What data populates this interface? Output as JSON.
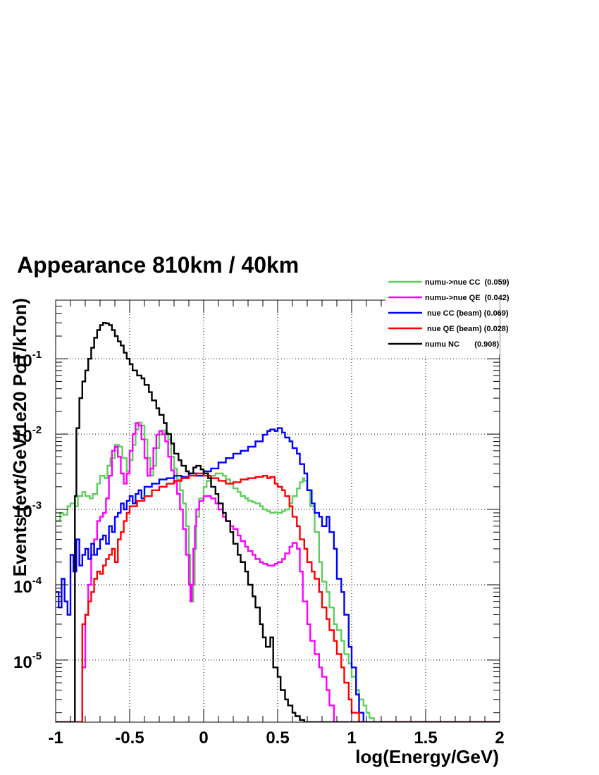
{
  "chart_data": {
    "type": "line",
    "title": "Appearance 810km / 40km",
    "xlabel": "log(Energy/GeV)",
    "ylabel": "Events (evt/GeV/1e20 PoT/kTon)",
    "xlim": [
      -1,
      2
    ],
    "ylim": [
      1.5e-06,
      0.6
    ],
    "y_scale": "log",
    "grid": true,
    "legend_position": "top-right",
    "x_ticks": [
      "-1",
      "-0.5",
      "0",
      "0.5",
      "1",
      "1.5",
      "2"
    ],
    "y_ticks": [
      {
        "base": "10",
        "exp": "-5"
      },
      {
        "base": "10",
        "exp": "-4"
      },
      {
        "base": "10",
        "exp": "-3"
      },
      {
        "base": "10",
        "exp": "-2"
      },
      {
        "base": "10",
        "exp": "-1"
      }
    ],
    "series": [
      {
        "name": "numu->nue CC  (0.059)",
        "color": "#5ccf5c",
        "x": [
          -1.0,
          -0.97,
          -0.95,
          -0.92,
          -0.9,
          -0.87,
          -0.85,
          -0.82,
          -0.8,
          -0.77,
          -0.75,
          -0.72,
          -0.7,
          -0.67,
          -0.65,
          -0.63,
          -0.6,
          -0.57,
          -0.55,
          -0.52,
          -0.5,
          -0.48,
          -0.46,
          -0.44,
          -0.42,
          -0.4,
          -0.38,
          -0.36,
          -0.34,
          -0.32,
          -0.3,
          -0.28,
          -0.26,
          -0.24,
          -0.22,
          -0.2,
          -0.18,
          -0.16,
          -0.14,
          -0.12,
          -0.1,
          -0.09,
          -0.08,
          -0.07,
          -0.06,
          -0.05,
          -0.03,
          0.0,
          0.02,
          0.05,
          0.08,
          0.1,
          0.13,
          0.15,
          0.18,
          0.2,
          0.23,
          0.25,
          0.28,
          0.3,
          0.33,
          0.35,
          0.38,
          0.4,
          0.43,
          0.45,
          0.48,
          0.5,
          0.53,
          0.55,
          0.58,
          0.6,
          0.63,
          0.65,
          0.67,
          0.68,
          0.7,
          0.72,
          0.75,
          0.78,
          0.8,
          0.83,
          0.85,
          0.88,
          0.9,
          0.93,
          0.95,
          0.98,
          1.0,
          1.03,
          1.05,
          1.08,
          1.1,
          1.12,
          1.15,
          1.18,
          1.2,
          1.5,
          2.0
        ],
        "y": [
          0.0007,
          0.0009,
          0.00085,
          0.0011,
          0.0012,
          0.0011,
          0.0015,
          0.0017,
          0.0015,
          0.0014,
          0.0016,
          0.0022,
          0.0028,
          0.0026,
          0.0038,
          0.0048,
          0.0072,
          0.0068,
          0.0048,
          0.0032,
          0.0045,
          0.0072,
          0.0115,
          0.0142,
          0.013,
          0.0085,
          0.0048,
          0.0028,
          0.0038,
          0.0065,
          0.0098,
          0.0112,
          0.0105,
          0.0085,
          0.005,
          0.0035,
          0.0025,
          0.0018,
          0.0012,
          0.0006,
          0.00025,
          0.0001,
          6e-05,
          0.0001,
          0.0003,
          0.0008,
          0.0014,
          0.002,
          0.0024,
          0.0028,
          0.003,
          0.003,
          0.0028,
          0.0025,
          0.0022,
          0.0019,
          0.0017,
          0.0015,
          0.0014,
          0.0013,
          0.00125,
          0.0012,
          0.0011,
          0.001,
          0.00095,
          0.0009,
          0.00092,
          0.0009,
          0.00095,
          0.001,
          0.0012,
          0.0015,
          0.0019,
          0.0023,
          0.0026,
          0.0024,
          0.0018,
          0.0011,
          0.0005,
          0.0002,
          0.00011,
          8e-05,
          5e-05,
          3e-05,
          2.5e-05,
          1.8e-05,
          1.2e-05,
          9e-06,
          6e-06,
          4e-06,
          3e-06,
          2.5e-06,
          2e-06,
          1.7e-06,
          1.5e-06,
          1.5e-06,
          1.5e-06,
          1.5e-06,
          1.5e-06
        ]
      },
      {
        "name": "numu->nue QE  (0.042)",
        "color": "#ff00ff",
        "x": [
          -1.0,
          -0.83,
          -0.82,
          -0.8,
          -0.78,
          -0.76,
          -0.74,
          -0.72,
          -0.7,
          -0.68,
          -0.66,
          -0.64,
          -0.62,
          -0.6,
          -0.58,
          -0.56,
          -0.54,
          -0.52,
          -0.5,
          -0.48,
          -0.46,
          -0.44,
          -0.42,
          -0.4,
          -0.38,
          -0.36,
          -0.34,
          -0.32,
          -0.3,
          -0.28,
          -0.26,
          -0.24,
          -0.22,
          -0.2,
          -0.18,
          -0.16,
          -0.14,
          -0.12,
          -0.1,
          -0.09,
          -0.08,
          -0.07,
          -0.06,
          -0.05,
          -0.03,
          0.0,
          0.03,
          0.05,
          0.08,
          0.1,
          0.13,
          0.15,
          0.18,
          0.2,
          0.23,
          0.25,
          0.28,
          0.3,
          0.33,
          0.35,
          0.38,
          0.4,
          0.43,
          0.45,
          0.48,
          0.5,
          0.53,
          0.55,
          0.58,
          0.6,
          0.63,
          0.65,
          0.67,
          0.7,
          0.72,
          0.75,
          0.78,
          0.8,
          0.83,
          0.85,
          0.88,
          0.9,
          1.0,
          2.0
        ],
        "y": [
          1.5e-06,
          1.5e-06,
          8e-06,
          4e-05,
          0.0001,
          0.00025,
          0.0004,
          0.0007,
          0.0008,
          0.0009,
          0.0014,
          0.0028,
          0.006,
          0.0068,
          0.005,
          0.003,
          0.0022,
          0.003,
          0.006,
          0.01,
          0.014,
          0.013,
          0.0085,
          0.0048,
          0.0028,
          0.0035,
          0.0065,
          0.0098,
          0.011,
          0.01,
          0.008,
          0.005,
          0.0033,
          0.0023,
          0.0016,
          0.001,
          0.00055,
          0.00025,
          0.0001,
          6e-05,
          0.0001,
          0.0003,
          0.0006,
          0.001,
          0.0013,
          0.0015,
          0.0015,
          0.0014,
          0.0012,
          0.001,
          0.0008,
          0.0007,
          0.0006,
          0.00055,
          0.00045,
          0.00038,
          0.00032,
          0.00028,
          0.00025,
          0.00022,
          0.0002,
          0.00019,
          0.00018,
          0.00018,
          0.00019,
          0.0002,
          0.00022,
          0.00026,
          0.00032,
          0.00036,
          0.0003,
          0.00015,
          6e-05,
          3e-05,
          1.8e-05,
          1.2e-05,
          8e-06,
          6e-06,
          4e-06,
          2.5e-06,
          1.5e-06,
          1.5e-06,
          1.5e-06,
          1.5e-06
        ]
      },
      {
        "name": " nue CC (beam) (0.069)",
        "color": "#0000ff",
        "x": [
          -1.0,
          -0.98,
          -0.96,
          -0.94,
          -0.92,
          -0.9,
          -0.88,
          -0.86,
          -0.84,
          -0.82,
          -0.8,
          -0.78,
          -0.76,
          -0.74,
          -0.72,
          -0.7,
          -0.68,
          -0.66,
          -0.64,
          -0.62,
          -0.6,
          -0.58,
          -0.56,
          -0.54,
          -0.52,
          -0.5,
          -0.48,
          -0.46,
          -0.44,
          -0.42,
          -0.4,
          -0.35,
          -0.3,
          -0.25,
          -0.2,
          -0.15,
          -0.1,
          -0.05,
          0.0,
          0.05,
          0.1,
          0.15,
          0.2,
          0.25,
          0.3,
          0.35,
          0.4,
          0.43,
          0.45,
          0.48,
          0.5,
          0.53,
          0.55,
          0.58,
          0.6,
          0.63,
          0.65,
          0.68,
          0.7,
          0.73,
          0.75,
          0.78,
          0.8,
          0.83,
          0.85,
          0.88,
          0.9,
          0.93,
          0.95,
          0.98,
          1.0,
          1.03,
          1.05,
          1.08,
          1.1,
          1.12,
          1.15,
          1.2,
          2.0
        ],
        "y": [
          8e-05,
          5e-05,
          0.00012,
          6e-05,
          4e-05,
          0.00025,
          0.00015,
          0.0004,
          0.00018,
          0.00025,
          0.0003,
          0.00022,
          0.00035,
          0.00025,
          0.0003,
          0.0004,
          0.00045,
          0.00035,
          0.0006,
          0.0005,
          0.0008,
          0.0009,
          0.0012,
          0.001,
          0.0013,
          0.0015,
          0.0012,
          0.0016,
          0.0018,
          0.0014,
          0.002,
          0.0022,
          0.0025,
          0.0026,
          0.0028,
          0.0027,
          0.003,
          0.0028,
          0.0032,
          0.0035,
          0.0042,
          0.0048,
          0.0055,
          0.006,
          0.0068,
          0.008,
          0.0098,
          0.011,
          0.0115,
          0.011,
          0.012,
          0.0105,
          0.009,
          0.008,
          0.0065,
          0.0055,
          0.004,
          0.003,
          0.0018,
          0.0012,
          0.0009,
          0.0008,
          0.0006,
          0.0008,
          0.0005,
          0.0003,
          0.00012,
          8e-05,
          4e-05,
          1.5e-05,
          8e-06,
          3.5e-06,
          2e-06,
          1.5e-06,
          1.5e-06,
          1.5e-06,
          1.5e-06,
          1.5e-06,
          1.5e-06
        ]
      },
      {
        "name": " nue QE (beam) (0.028)",
        "color": "#ff0000",
        "x": [
          -1.0,
          -0.84,
          -0.82,
          -0.8,
          -0.78,
          -0.76,
          -0.74,
          -0.72,
          -0.7,
          -0.68,
          -0.66,
          -0.64,
          -0.62,
          -0.6,
          -0.58,
          -0.56,
          -0.54,
          -0.52,
          -0.5,
          -0.45,
          -0.4,
          -0.35,
          -0.3,
          -0.25,
          -0.2,
          -0.15,
          -0.1,
          -0.05,
          0.0,
          0.05,
          0.1,
          0.15,
          0.2,
          0.25,
          0.3,
          0.35,
          0.4,
          0.43,
          0.45,
          0.48,
          0.5,
          0.53,
          0.55,
          0.58,
          0.6,
          0.63,
          0.65,
          0.68,
          0.7,
          0.73,
          0.75,
          0.78,
          0.8,
          0.83,
          0.85,
          0.88,
          0.9,
          0.93,
          0.95,
          0.98,
          1.0,
          1.05,
          1.1,
          2.0
        ],
        "y": [
          1.5e-06,
          1.5e-06,
          3e-05,
          4e-05,
          6e-05,
          8e-05,
          0.00012,
          0.00015,
          0.00014,
          0.00018,
          0.00022,
          0.00025,
          0.0003,
          0.0002,
          0.0004,
          0.0005,
          0.0007,
          0.0009,
          0.0011,
          0.0013,
          0.0015,
          0.0018,
          0.002,
          0.0022,
          0.0024,
          0.0026,
          0.0028,
          0.003,
          0.0028,
          0.0026,
          0.0024,
          0.0022,
          0.0023,
          0.0025,
          0.0026,
          0.0027,
          0.0028,
          0.0026,
          0.0027,
          0.0022,
          0.002,
          0.0018,
          0.0015,
          0.0011,
          0.0008,
          0.0006,
          0.0004,
          0.0003,
          0.0002,
          0.00015,
          0.00012,
          8e-05,
          5e-05,
          3.5e-05,
          2.5e-05,
          1.8e-05,
          1.2e-05,
          8e-06,
          5e-06,
          3e-06,
          2e-06,
          1.5e-06,
          1.5e-06,
          1.5e-06
        ]
      },
      {
        "name": "numu NC       (0.908)",
        "color": "#000000",
        "x": [
          -1.0,
          -0.89,
          -0.88,
          -0.87,
          -0.86,
          -0.84,
          -0.82,
          -0.8,
          -0.78,
          -0.76,
          -0.74,
          -0.72,
          -0.7,
          -0.68,
          -0.66,
          -0.64,
          -0.62,
          -0.6,
          -0.58,
          -0.56,
          -0.54,
          -0.52,
          -0.5,
          -0.48,
          -0.45,
          -0.42,
          -0.4,
          -0.37,
          -0.35,
          -0.32,
          -0.3,
          -0.27,
          -0.25,
          -0.22,
          -0.2,
          -0.17,
          -0.15,
          -0.12,
          -0.1,
          -0.07,
          -0.05,
          -0.02,
          0.0,
          0.03,
          0.05,
          0.08,
          0.1,
          0.13,
          0.15,
          0.18,
          0.2,
          0.23,
          0.25,
          0.28,
          0.3,
          0.33,
          0.35,
          0.38,
          0.4,
          0.42,
          0.45,
          0.47,
          0.5,
          0.52,
          0.55,
          0.57,
          0.6,
          0.62,
          0.65,
          0.68,
          0.7,
          0.72,
          2.0
        ],
        "y": [
          1.5e-06,
          1.5e-06,
          1.5e-06,
          0.0015,
          0.012,
          0.03,
          0.05,
          0.07,
          0.1,
          0.14,
          0.19,
          0.24,
          0.28,
          0.3,
          0.295,
          0.28,
          0.24,
          0.2,
          0.17,
          0.15,
          0.12,
          0.1,
          0.085,
          0.07,
          0.06,
          0.055,
          0.045,
          0.036,
          0.028,
          0.022,
          0.018,
          0.014,
          0.01,
          0.0075,
          0.0055,
          0.0045,
          0.0038,
          0.0032,
          0.003,
          0.0036,
          0.0038,
          0.0034,
          0.003,
          0.0026,
          0.002,
          0.0016,
          0.0012,
          0.0009,
          0.0007,
          0.0005,
          0.00035,
          0.00025,
          0.0002,
          0.00015,
          0.0001,
          7e-05,
          5e-05,
          3e-05,
          2e-05,
          1.5e-05,
          2e-05,
          8e-06,
          6e-06,
          4e-06,
          3e-06,
          2.5e-06,
          2e-06,
          1.8e-06,
          1.6e-06,
          1.5e-06,
          1.5e-06,
          1.5e-06,
          1.5e-06
        ]
      }
    ]
  }
}
